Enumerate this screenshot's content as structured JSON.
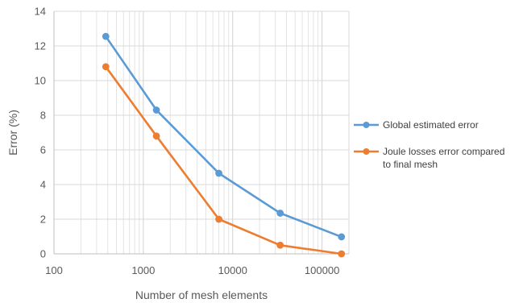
{
  "chart_data": {
    "type": "line",
    "xlabel": "Number of mesh elements",
    "ylabel": "Error (%)",
    "xscale": "log",
    "xlim": [
      100,
      200000
    ],
    "ylim": [
      0,
      14
    ],
    "x_ticks": [
      "100",
      "1000",
      "10000",
      "100000"
    ],
    "y_ticks": [
      "0",
      "2",
      "4",
      "6",
      "8",
      "10",
      "12",
      "14"
    ],
    "grid": {
      "major": true,
      "minor_x": true
    },
    "legend_position": "right",
    "series": [
      {
        "name": "Global estimated error",
        "color": "#5B9BD5",
        "points": [
          {
            "x": 380,
            "y": 12.55
          },
          {
            "x": 1400,
            "y": 8.3
          },
          {
            "x": 7000,
            "y": 4.65
          },
          {
            "x": 34000,
            "y": 2.35
          },
          {
            "x": 165000,
            "y": 0.98
          }
        ]
      },
      {
        "name": "Joule losses error compared to final mesh",
        "color": "#ED7D31",
        "points": [
          {
            "x": 380,
            "y": 10.8
          },
          {
            "x": 1400,
            "y": 6.8
          },
          {
            "x": 7000,
            "y": 2.0
          },
          {
            "x": 34000,
            "y": 0.5
          },
          {
            "x": 165000,
            "y": 0.0
          }
        ]
      }
    ],
    "legend_lines": [
      [
        "Global estimated error"
      ],
      [
        "Joule losses error compared",
        "to final mesh"
      ]
    ]
  }
}
